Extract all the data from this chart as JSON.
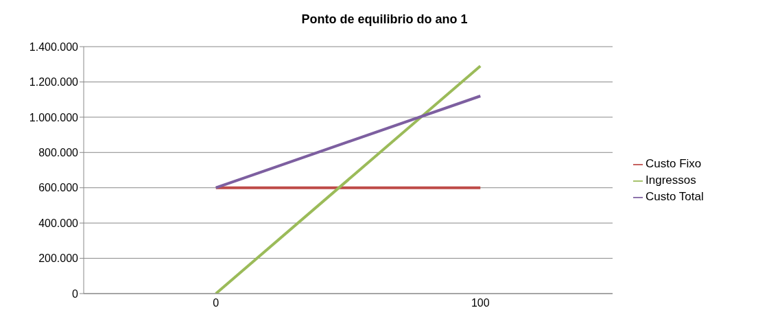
{
  "chart_data": {
    "type": "line",
    "title": "Ponto de equilibrio do ano 1",
    "categories": [
      "0",
      "100"
    ],
    "series": [
      {
        "name": "Custo Fixo",
        "color": "#be4b48",
        "values": [
          600000,
          600000
        ]
      },
      {
        "name": "Ingressos",
        "color": "#9bbb59",
        "values": [
          0,
          1290000
        ]
      },
      {
        "name": "Custo Total",
        "color": "#7d5fa0",
        "values": [
          600000,
          1120000
        ]
      }
    ],
    "ylim": [
      0,
      1400000
    ],
    "yticks": [
      0,
      {
        "value": 200000,
        "label": "200.000"
      },
      {
        "value": 400000,
        "label": "400.000"
      },
      {
        "value": 600000,
        "label": "600.000"
      },
      {
        "value": 800000,
        "label": "800.000"
      },
      {
        "value": 1000000,
        "label": "1.000.000"
      },
      {
        "value": 1200000,
        "label": "1.200.000"
      },
      {
        "value": 1400000,
        "label": "1.400.000"
      }
    ],
    "grid": "y",
    "legend": "right",
    "marker": "none",
    "line_style": "solid"
  }
}
